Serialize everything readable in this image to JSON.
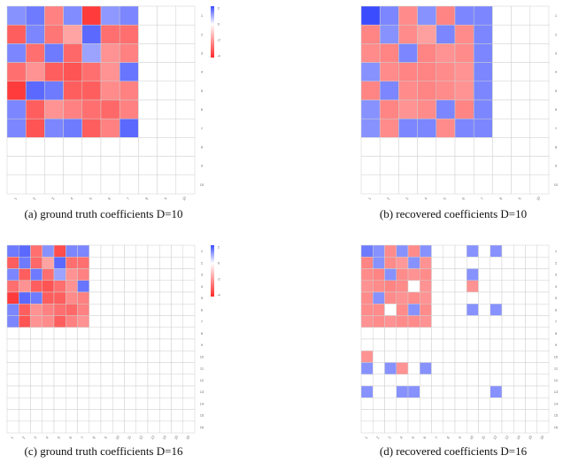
{
  "colors": {
    "positive": "#3b4cff",
    "negative": "#ff2a2a",
    "zero": "#ffffff",
    "grid": "#cfcfcf"
  },
  "chart_data": [
    {
      "type": "heatmap",
      "caption": "(a) ground truth coefficients D=10",
      "size": 10,
      "colorbar_ticks": [
        "2",
        "0",
        "-2",
        "-4"
      ],
      "vmin": -4,
      "vmax": 2,
      "values": [
        [
          0.8,
          1.2,
          -1.5,
          0.9,
          -3.5,
          0.7,
          1.0,
          0,
          0,
          0
        ],
        [
          -2.5,
          1.0,
          -1.8,
          -0.5,
          1.5,
          -2.0,
          -2.0,
          0,
          0,
          0
        ],
        [
          1.0,
          -2.0,
          1.2,
          -2.2,
          0.5,
          -1.0,
          -1.5,
          0,
          0,
          0
        ],
        [
          -2.0,
          -1.0,
          -2.5,
          -2.8,
          -2.0,
          -1.0,
          1.3,
          0,
          0,
          0
        ],
        [
          -3.5,
          1.5,
          1.2,
          -2.5,
          -2.5,
          -1.2,
          -1.5,
          0,
          0,
          0
        ],
        [
          1.0,
          -2.5,
          -1.0,
          -1.5,
          -2.0,
          -2.2,
          -1.5,
          0,
          0,
          0
        ],
        [
          1.0,
          -2.8,
          1.0,
          1.2,
          -2.5,
          -1.5,
          1.5,
          0,
          0,
          0
        ],
        [
          0,
          0,
          0,
          0,
          0,
          0,
          0,
          0,
          0,
          0
        ],
        [
          0,
          0,
          0,
          0,
          0,
          0,
          0,
          0,
          0,
          0
        ],
        [
          0,
          0,
          0,
          0,
          0,
          0,
          0,
          0,
          0,
          0
        ]
      ]
    },
    {
      "type": "heatmap",
      "caption": "(b) recovered coefficients D=10",
      "size": 10,
      "colorbar_ticks": [],
      "vmin": -2,
      "vmax": 1,
      "values": [
        [
          1.8,
          0.5,
          -0.6,
          0.4,
          -0.7,
          0.5,
          0.5,
          0,
          0,
          0
        ],
        [
          -0.7,
          0.4,
          -0.6,
          -0.3,
          0.5,
          -0.6,
          0.5,
          0,
          0,
          0
        ],
        [
          -0.6,
          -0.7,
          0.5,
          -0.7,
          -0.5,
          -0.6,
          0.5,
          0,
          0,
          0
        ],
        [
          0.4,
          -0.6,
          -0.7,
          -0.7,
          -0.6,
          -0.5,
          0.5,
          0,
          0,
          0
        ],
        [
          -0.7,
          0.5,
          -0.6,
          -0.7,
          -0.6,
          -0.5,
          0.5,
          0,
          0,
          0
        ],
        [
          0.4,
          -0.7,
          -0.5,
          -0.6,
          0.5,
          -0.7,
          0.5,
          0,
          0,
          0
        ],
        [
          0.4,
          -0.6,
          0.5,
          0.5,
          -0.6,
          0.5,
          0.5,
          0,
          0,
          0
        ],
        [
          0,
          0,
          0,
          0,
          0,
          0,
          0,
          0,
          0,
          0
        ],
        [
          0,
          0,
          0,
          0,
          0,
          0,
          0,
          0,
          0,
          0
        ],
        [
          0,
          0,
          0,
          0,
          0,
          0,
          0,
          0,
          0,
          0
        ]
      ]
    },
    {
      "type": "heatmap",
      "caption": "(c) ground truth coefficients D=16",
      "size": 16,
      "colorbar_ticks": [
        "2",
        "0",
        "-2",
        "-4"
      ],
      "vmin": -4,
      "vmax": 2,
      "values": [
        [
          1.2,
          1.5,
          -2.0,
          0.8,
          -3.0,
          1.0,
          1.0,
          0,
          0,
          0,
          0,
          0,
          0,
          0,
          0,
          0
        ],
        [
          -2.5,
          1.2,
          -2.2,
          -0.5,
          1.5,
          -2.0,
          -2.0,
          0,
          0,
          0,
          0,
          0,
          0,
          0,
          0,
          0
        ],
        [
          1.0,
          -2.5,
          1.2,
          -2.0,
          0.5,
          -1.0,
          -1.5,
          0,
          0,
          0,
          0,
          0,
          0,
          0,
          0,
          0
        ],
        [
          -2.0,
          -1.0,
          -2.5,
          -2.8,
          -2.0,
          -1.0,
          1.3,
          0,
          0,
          0,
          0,
          0,
          0,
          0,
          0,
          0
        ],
        [
          -3.5,
          1.5,
          1.2,
          -2.5,
          -2.5,
          -1.2,
          -1.5,
          0,
          0,
          0,
          0,
          0,
          0,
          0,
          0,
          0
        ],
        [
          1.0,
          -2.5,
          -1.0,
          -1.5,
          -2.0,
          -2.2,
          -1.5,
          0,
          0,
          0,
          0,
          0,
          0,
          0,
          0,
          0
        ],
        [
          1.0,
          -2.8,
          -1.0,
          -1.2,
          -2.5,
          -1.5,
          -1.0,
          0,
          0,
          0,
          0,
          0,
          0,
          0,
          0,
          0
        ],
        [
          0,
          0,
          0,
          0,
          0,
          0,
          0,
          0,
          0,
          0,
          0,
          0,
          0,
          0,
          0,
          0
        ],
        [
          0,
          0,
          0,
          0,
          0,
          0,
          0,
          0,
          0,
          0,
          0,
          0,
          0,
          0,
          0,
          0
        ],
        [
          0,
          0,
          0,
          0,
          0,
          0,
          0,
          0,
          0,
          0,
          0,
          0,
          0,
          0,
          0,
          0
        ],
        [
          0,
          0,
          0,
          0,
          0,
          0,
          0,
          0,
          0,
          0,
          0,
          0,
          0,
          0,
          0,
          0
        ],
        [
          0,
          0,
          0,
          0,
          0,
          0,
          0,
          0,
          0,
          0,
          0,
          0,
          0,
          0,
          0,
          0
        ],
        [
          0,
          0,
          0,
          0,
          0,
          0,
          0,
          0,
          0,
          0,
          0,
          0,
          0,
          0,
          0,
          0
        ],
        [
          0,
          0,
          0,
          0,
          0,
          0,
          0,
          0,
          0,
          0,
          0,
          0,
          0,
          0,
          0,
          0
        ],
        [
          0,
          0,
          0,
          0,
          0,
          0,
          0,
          0,
          0,
          0,
          0,
          0,
          0,
          0,
          0,
          0
        ],
        [
          0,
          0,
          0,
          0,
          0,
          0,
          0,
          0,
          0,
          0,
          0,
          0,
          0,
          0,
          0,
          0
        ]
      ]
    },
    {
      "type": "heatmap",
      "caption": "(d) recovered coefficients D=16",
      "size": 16,
      "colorbar_ticks": [],
      "vmin": -2,
      "vmax": 1,
      "values": [
        [
          0.6,
          0.4,
          -0.6,
          0.4,
          -0.6,
          0.4,
          0,
          0,
          0,
          0.4,
          0,
          0.4,
          0,
          0,
          0,
          0
        ],
        [
          -0.7,
          0.4,
          -0.6,
          -0.4,
          0.4,
          -0.5,
          0,
          0,
          0,
          0,
          0,
          0,
          0,
          0,
          0,
          0
        ],
        [
          -0.6,
          -0.7,
          0.4,
          -0.6,
          -0.5,
          -0.6,
          0,
          0,
          0,
          0.4,
          0,
          0,
          0,
          0,
          0,
          0
        ],
        [
          -0.5,
          -0.6,
          -0.7,
          -0.6,
          0,
          -0.5,
          0,
          0,
          0,
          -0.5,
          0,
          0,
          0,
          0,
          0,
          0
        ],
        [
          -0.6,
          0.4,
          -0.6,
          -0.5,
          -0.6,
          -0.5,
          0,
          0,
          0,
          0,
          0,
          0,
          0,
          0,
          0,
          0
        ],
        [
          -0.6,
          -0.6,
          0,
          -0.6,
          0.4,
          -0.6,
          0,
          0,
          0,
          0.4,
          0,
          0.4,
          0,
          0,
          0,
          0
        ],
        [
          -0.5,
          -0.6,
          -0.5,
          -0.6,
          -0.6,
          -0.5,
          0,
          0,
          0,
          0,
          0,
          0,
          0,
          0,
          0,
          0
        ],
        [
          0,
          0,
          0,
          0,
          0,
          0,
          0,
          0,
          0,
          0,
          0,
          0,
          0,
          0,
          0,
          0
        ],
        [
          0,
          0,
          0,
          0,
          0,
          0,
          0,
          0,
          0,
          0,
          0,
          0,
          0,
          0,
          0,
          0
        ],
        [
          -0.5,
          0,
          0,
          0,
          0,
          0,
          0,
          0,
          0,
          0,
          0,
          0,
          0,
          0,
          0,
          0
        ],
        [
          0.4,
          0,
          0.4,
          -0.5,
          0,
          0.4,
          0,
          0,
          0,
          0,
          0,
          0,
          0,
          0,
          0,
          0
        ],
        [
          0,
          0,
          0,
          0,
          0,
          0,
          0,
          0,
          0,
          0,
          0,
          0,
          0,
          0,
          0,
          0
        ],
        [
          0.4,
          0,
          0,
          0.4,
          0.4,
          0,
          0,
          0,
          0,
          0,
          0,
          0.4,
          0,
          0,
          0,
          0
        ],
        [
          0,
          0,
          0,
          0,
          0,
          0,
          0,
          0,
          0,
          0,
          0,
          0,
          0,
          0,
          0,
          0
        ],
        [
          0,
          0,
          0,
          0,
          0,
          0,
          0,
          0,
          0,
          0,
          0,
          0,
          0,
          0,
          0,
          0
        ],
        [
          0,
          0,
          0,
          0,
          0,
          0,
          0,
          0,
          0,
          0,
          0,
          0,
          0,
          0,
          0,
          0
        ]
      ]
    }
  ]
}
